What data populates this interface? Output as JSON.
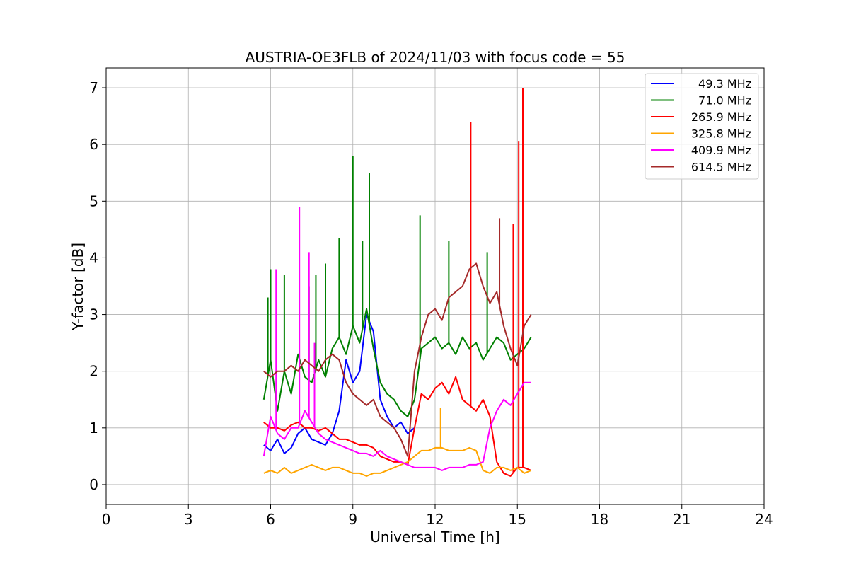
{
  "chart_data": {
    "type": "line",
    "title": "AUSTRIA-OE3FLB of 2024/11/03 with focus code = 55",
    "xlabel": "Universal Time [h]",
    "ylabel": "Y-factor [dB]",
    "xlim": [
      0,
      24
    ],
    "ylim": [
      -0.35,
      7.35
    ],
    "xticks": [
      0,
      3,
      6,
      9,
      12,
      15,
      18,
      21,
      24
    ],
    "yticks": [
      0,
      1,
      2,
      3,
      4,
      5,
      6,
      7
    ],
    "grid": true,
    "legend_position": "top-right",
    "series": [
      {
        "name": "49.3 MHz",
        "color": "#0000ff",
        "x": [
          5.75,
          6.0,
          6.25,
          6.5,
          6.75,
          7.0,
          7.25,
          7.5,
          7.75,
          8.0,
          8.25,
          8.5,
          8.75,
          9.0,
          9.25,
          9.5,
          9.75,
          10.0,
          10.25,
          10.5,
          10.75,
          11.0,
          11.25
        ],
        "y": [
          0.7,
          0.6,
          0.8,
          0.55,
          0.65,
          0.9,
          1.0,
          0.8,
          0.75,
          0.7,
          0.9,
          1.3,
          2.2,
          1.8,
          2.0,
          3.0,
          2.7,
          1.5,
          1.2,
          1.0,
          1.1,
          0.9,
          1.0
        ]
      },
      {
        "name": "71.0 MHz",
        "color": "#008000",
        "x": [
          5.75,
          6.0,
          6.25,
          6.5,
          6.75,
          7.0,
          7.25,
          7.5,
          7.75,
          8.0,
          8.25,
          8.5,
          8.75,
          9.0,
          9.25,
          9.5,
          9.75,
          10.0,
          10.25,
          10.5,
          10.75,
          11.0,
          11.25,
          11.5,
          11.75,
          12.0,
          12.25,
          12.5,
          12.75,
          13.0,
          13.25,
          13.5,
          13.75,
          14.0,
          14.25,
          14.5,
          14.75,
          15.0,
          15.25,
          15.5
        ],
        "y": [
          1.5,
          2.2,
          1.3,
          2.0,
          1.6,
          2.3,
          1.9,
          1.8,
          2.2,
          1.9,
          2.4,
          2.6,
          2.3,
          2.8,
          2.5,
          3.1,
          2.4,
          1.8,
          1.6,
          1.5,
          1.3,
          1.2,
          1.5,
          2.4,
          2.5,
          2.6,
          2.4,
          2.5,
          2.3,
          2.6,
          2.4,
          2.5,
          2.2,
          2.4,
          2.6,
          2.5,
          2.2,
          2.3,
          2.4,
          2.6
        ],
        "spikes": [
          [
            5.9,
            3.3
          ],
          [
            6.0,
            3.8
          ],
          [
            6.5,
            3.7
          ],
          [
            7.4,
            3.5
          ],
          [
            7.65,
            3.7
          ],
          [
            8.0,
            3.9
          ],
          [
            8.5,
            4.35
          ],
          [
            9.0,
            5.8
          ],
          [
            9.35,
            4.3
          ],
          [
            9.6,
            5.5
          ],
          [
            11.45,
            4.75
          ],
          [
            12.5,
            4.3
          ],
          [
            13.9,
            4.1
          ]
        ]
      },
      {
        "name": "265.9 MHz",
        "color": "#ff0000",
        "x": [
          5.75,
          6.0,
          6.25,
          6.5,
          6.75,
          7.0,
          7.25,
          7.5,
          7.75,
          8.0,
          8.25,
          8.5,
          8.75,
          9.0,
          9.25,
          9.5,
          9.75,
          10.0,
          10.25,
          10.5,
          10.75,
          11.0,
          11.25,
          11.5,
          11.75,
          12.0,
          12.25,
          12.5,
          12.75,
          13.0,
          13.25,
          13.5,
          13.75,
          14.0,
          14.25,
          14.5,
          14.75,
          15.0,
          15.25,
          15.5
        ],
        "y": [
          1.1,
          1.0,
          1.0,
          0.95,
          1.05,
          1.1,
          1.0,
          1.0,
          0.95,
          1.0,
          0.9,
          0.8,
          0.8,
          0.75,
          0.7,
          0.7,
          0.65,
          0.5,
          0.45,
          0.4,
          0.4,
          0.35,
          1.0,
          1.6,
          1.5,
          1.7,
          1.8,
          1.6,
          1.9,
          1.5,
          1.4,
          1.3,
          1.5,
          1.2,
          0.4,
          0.2,
          0.15,
          0.3,
          0.3,
          0.25
        ],
        "spikes": [
          [
            13.3,
            6.4
          ],
          [
            14.85,
            4.6
          ],
          [
            15.05,
            6.05
          ],
          [
            15.2,
            7.0
          ]
        ]
      },
      {
        "name": "325.8 MHz",
        "color": "#ffa500",
        "x": [
          5.75,
          6.0,
          6.25,
          6.5,
          6.75,
          7.0,
          7.25,
          7.5,
          7.75,
          8.0,
          8.25,
          8.5,
          8.75,
          9.0,
          9.25,
          9.5,
          9.75,
          10.0,
          10.25,
          10.5,
          10.75,
          11.0,
          11.25,
          11.5,
          11.75,
          12.0,
          12.25,
          12.5,
          12.75,
          13.0,
          13.25,
          13.5,
          13.75,
          14.0,
          14.25,
          14.5,
          14.75,
          15.0,
          15.25,
          15.5
        ],
        "y": [
          0.2,
          0.25,
          0.2,
          0.3,
          0.2,
          0.25,
          0.3,
          0.35,
          0.3,
          0.25,
          0.3,
          0.3,
          0.25,
          0.2,
          0.2,
          0.15,
          0.2,
          0.2,
          0.25,
          0.3,
          0.35,
          0.4,
          0.5,
          0.6,
          0.6,
          0.65,
          0.65,
          0.6,
          0.6,
          0.6,
          0.65,
          0.6,
          0.25,
          0.2,
          0.3,
          0.3,
          0.25,
          0.3,
          0.2,
          0.25
        ],
        "spikes": [
          [
            12.2,
            1.35
          ]
        ]
      },
      {
        "name": "409.9 MHz",
        "color": "#ff00ff",
        "x": [
          5.75,
          6.0,
          6.25,
          6.5,
          6.75,
          7.0,
          7.25,
          7.5,
          7.75,
          8.0,
          8.25,
          8.5,
          8.75,
          9.0,
          9.25,
          9.5,
          9.75,
          10.0,
          10.25,
          10.5,
          10.75,
          11.0,
          11.25,
          11.5,
          11.75,
          12.0,
          12.25,
          12.5,
          12.75,
          13.0,
          13.25,
          13.5,
          13.75,
          14.0,
          14.25,
          14.5,
          14.75,
          15.0,
          15.25,
          15.5
        ],
        "y": [
          0.5,
          1.2,
          0.9,
          0.8,
          1.0,
          1.0,
          1.3,
          1.1,
          0.9,
          0.8,
          0.75,
          0.7,
          0.65,
          0.6,
          0.55,
          0.55,
          0.5,
          0.6,
          0.5,
          0.45,
          0.4,
          0.35,
          0.3,
          0.3,
          0.3,
          0.3,
          0.25,
          0.3,
          0.3,
          0.3,
          0.35,
          0.35,
          0.4,
          1.0,
          1.3,
          1.5,
          1.4,
          1.6,
          1.8,
          1.8
        ],
        "spikes": [
          [
            6.2,
            3.8
          ],
          [
            7.05,
            4.9
          ],
          [
            7.4,
            4.1
          ],
          [
            7.6,
            2.5
          ]
        ]
      },
      {
        "name": "614.5 MHz",
        "color": "#a52a2a",
        "x": [
          5.75,
          6.0,
          6.25,
          6.5,
          6.75,
          7.0,
          7.25,
          7.5,
          7.75,
          8.0,
          8.25,
          8.5,
          8.75,
          9.0,
          9.25,
          9.5,
          9.75,
          10.0,
          10.25,
          10.5,
          10.75,
          11.0,
          11.25,
          11.5,
          11.75,
          12.0,
          12.25,
          12.5,
          12.75,
          13.0,
          13.25,
          13.5,
          13.75,
          14.0,
          14.25,
          14.5,
          14.75,
          15.0,
          15.25,
          15.5
        ],
        "y": [
          2.0,
          1.9,
          2.0,
          2.0,
          2.1,
          2.0,
          2.2,
          2.1,
          2.0,
          2.2,
          2.3,
          2.2,
          1.8,
          1.6,
          1.5,
          1.4,
          1.5,
          1.2,
          1.1,
          1.0,
          0.8,
          0.5,
          2.0,
          2.6,
          3.0,
          3.1,
          2.9,
          3.3,
          3.4,
          3.5,
          3.8,
          3.9,
          3.5,
          3.2,
          3.4,
          2.8,
          2.4,
          2.1,
          2.8,
          3.0
        ],
        "spikes": [
          [
            14.35,
            4.7
          ]
        ]
      }
    ]
  }
}
